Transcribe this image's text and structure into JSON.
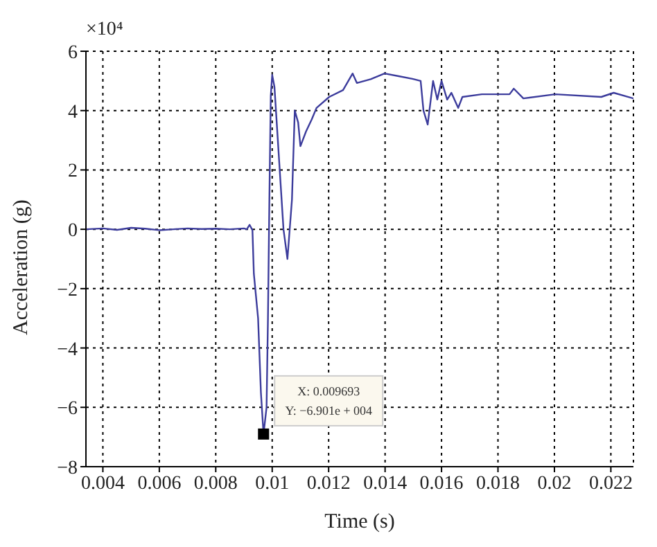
{
  "chart_data": {
    "type": "line",
    "xlabel": "Time (s)",
    "ylabel": "Acceleration (g)",
    "annotations": [
      "×10⁴",
      "X: 0.009693",
      "Y: −6.901e + 004"
    ],
    "x": [
      0.0034,
      0.004,
      0.0045,
      0.005,
      0.0055,
      0.006,
      0.0065,
      0.007,
      0.0075,
      0.008,
      0.0085,
      0.009,
      0.0091,
      0.0092,
      0.0093,
      0.00935,
      0.0095,
      0.0096,
      0.009693,
      0.0098,
      0.00985,
      0.0099,
      0.00995,
      0.01,
      0.01008,
      0.0102,
      0.0104,
      0.01054,
      0.0107,
      0.0108,
      0.01092,
      0.011,
      0.0112,
      0.0114,
      0.01157,
      0.01202,
      0.01251,
      0.01285,
      0.013,
      0.01349,
      0.01398,
      0.01448,
      0.01497,
      0.01526,
      0.01536,
      0.01551,
      0.0157,
      0.01585,
      0.016,
      0.0162,
      0.01635,
      0.01659,
      0.01674,
      0.01743,
      0.01841,
      0.01856,
      0.0189,
      0.02003,
      0.02166,
      0.0221,
      0.0228
    ],
    "series": [
      {
        "color": "#3c3c9c",
        "values": [
          0,
          0.03,
          -0.02,
          0.05,
          0.02,
          -0.03,
          0,
          0.03,
          0.01,
          0.02,
          0,
          0.03,
          0,
          0.15,
          -0.03,
          -1.5,
          -3,
          -5.5,
          -6.9,
          -6,
          -3,
          1,
          4.5,
          5.2,
          4.8,
          3,
          0,
          -1,
          1,
          4,
          3.6,
          2.8,
          3.3,
          3.7,
          4.09,
          4.46,
          4.69,
          5.25,
          4.93,
          5.06,
          5.25,
          5.16,
          5.07,
          5,
          4,
          3.53,
          5,
          4.37,
          5,
          4.37,
          4.6,
          4.09,
          4.46,
          4.55,
          4.55,
          4.74,
          4.41,
          4.55,
          4.46,
          4.6,
          4.41
        ]
      }
    ],
    "xlim": [
      0.0034,
      0.0228
    ],
    "xticks": [
      0.004,
      0.006,
      0.008,
      0.01,
      0.012,
      0.014,
      0.016,
      0.018,
      0.02,
      0.022
    ],
    "ylim": [
      -8,
      6
    ],
    "yticks": [
      {
        "value": -8,
        "label": "−8"
      },
      {
        "value": -6,
        "label": "−6"
      },
      {
        "value": -4,
        "label": "−4"
      },
      {
        "value": -2,
        "label": "−2"
      },
      0,
      2,
      4,
      6
    ],
    "grid": true,
    "marker": "none",
    "line_style": "solid"
  }
}
